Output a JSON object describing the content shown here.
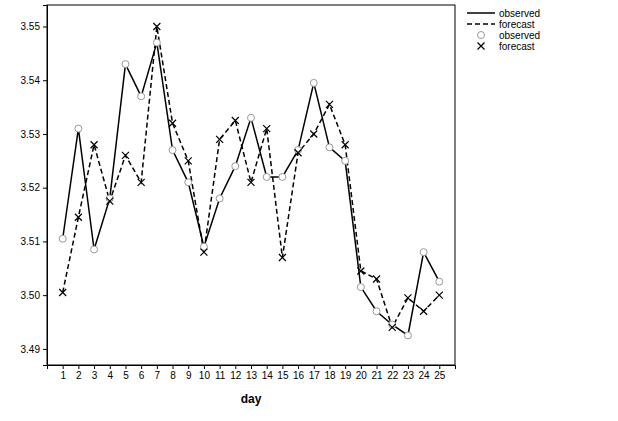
{
  "chart_data": {
    "type": "line",
    "x_label": "day",
    "x": [
      1,
      2,
      3,
      4,
      5,
      6,
      7,
      8,
      9,
      10,
      11,
      12,
      13,
      14,
      15,
      16,
      17,
      18,
      19,
      20,
      21,
      22,
      23,
      24,
      25
    ],
    "xlim": [
      0,
      26
    ],
    "xticks": [
      1,
      2,
      3,
      4,
      5,
      6,
      7,
      8,
      9,
      10,
      11,
      12,
      13,
      14,
      15,
      16,
      17,
      18,
      19,
      20,
      21,
      22,
      23,
      24,
      25
    ],
    "ylim": [
      3.487,
      3.554
    ],
    "yticks": [
      3.49,
      {
        "value": 3.5,
        "label": "3.50"
      },
      3.51,
      3.52,
      3.53,
      3.54,
      3.55
    ],
    "grid": false,
    "legend": "right",
    "series": [
      {
        "name": "observed",
        "color": "#000000",
        "line_style": "solid",
        "marker": "circle",
        "values": [
          3.5105,
          3.531,
          3.5085,
          3.518,
          3.543,
          3.537,
          3.547,
          3.527,
          3.521,
          3.509,
          3.518,
          3.524,
          3.533,
          3.522,
          3.522,
          3.527,
          3.5395,
          3.5275,
          3.525,
          3.5015,
          3.497,
          3.4945,
          3.4925,
          3.508,
          3.5025
        ]
      },
      {
        "name": "forecast",
        "color": "#000000",
        "line_style": "dashed",
        "marker": "x",
        "values": [
          3.5005,
          3.5145,
          3.528,
          3.5175,
          3.526,
          3.521,
          3.55,
          3.532,
          3.525,
          3.508,
          3.529,
          3.5325,
          3.521,
          3.531,
          3.507,
          3.5265,
          3.53,
          3.5355,
          3.528,
          3.5045,
          3.503,
          3.494,
          3.4995,
          3.497,
          3.5
        ]
      }
    ]
  }
}
